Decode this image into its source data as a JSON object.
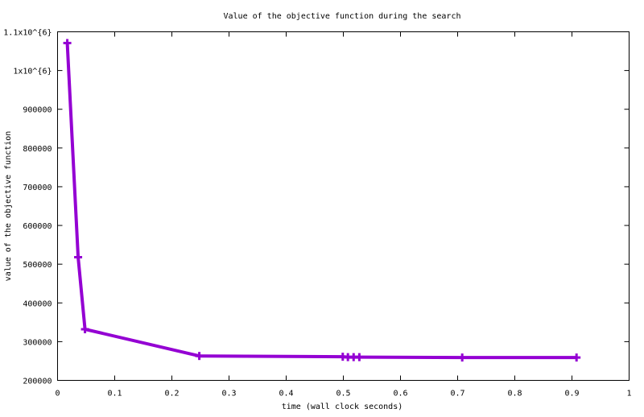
{
  "chart_data": {
    "type": "line",
    "title": "Value of the objective function during the search",
    "xlabel": "time (wall clock seconds)",
    "ylabel": "value of the objective function",
    "xlim": [
      0,
      1
    ],
    "ylim": [
      200000,
      1100000
    ],
    "xticks": [
      0,
      0.1,
      0.2,
      0.3,
      0.4,
      0.5,
      0.6,
      0.7,
      0.8,
      0.9,
      1
    ],
    "xtick_labels": [
      "0",
      "0.1",
      "0.2",
      "0.3",
      "0.4",
      "0.5",
      "0.6",
      "0.7",
      "0.8",
      "0.9",
      "1"
    ],
    "yticks": [
      200000,
      300000,
      400000,
      500000,
      600000,
      700000,
      800000,
      900000,
      1000000,
      1100000
    ],
    "ytick_labels": [
      "200000",
      "300000",
      "400000",
      "500000",
      "600000",
      "700000",
      "800000",
      "900000",
      "1x10^{6}",
      "1.1x10^{6}"
    ],
    "grid": false,
    "color": "#9400d3",
    "marker": "plus",
    "series": [
      {
        "x": [
          0.017,
          0.036,
          0.048,
          0.248,
          0.499,
          0.508,
          0.518,
          0.528,
          0.708,
          0.908
        ],
        "y": [
          1071000,
          518000,
          332000,
          263000,
          261000,
          260000,
          260000,
          260000,
          259000,
          259000
        ]
      }
    ]
  }
}
